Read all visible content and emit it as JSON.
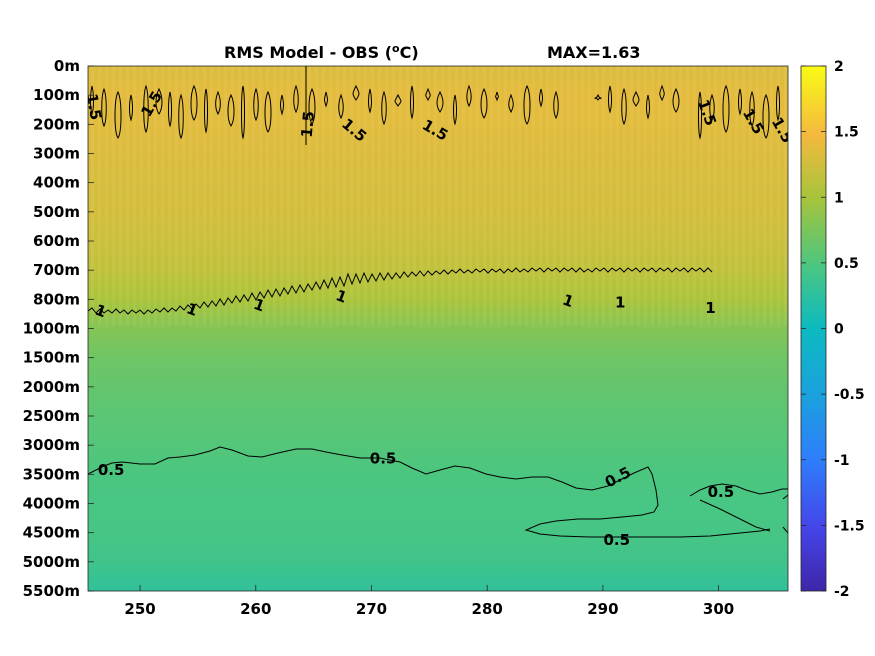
{
  "chart_data": {
    "type": "heatmap",
    "title": "RMS Model - OBS (",
    "title_unit_sup": "o",
    "title_unit_end": "C)",
    "max_label": "MAX=1.63",
    "x_ticks": [
      250,
      260,
      270,
      280,
      290,
      300
    ],
    "xlim": [
      245.5,
      306
    ],
    "y_tick_labels": [
      "0m",
      "100m",
      "200m",
      "300m",
      "400m",
      "500m",
      "600m",
      "700m",
      "800m",
      "1000m",
      "1500m",
      "2000m",
      "2500m",
      "3000m",
      "3500m",
      "4000m",
      "4500m",
      "5000m",
      "5500m"
    ],
    "depth_profile": [
      {
        "depth_index": 0,
        "value": 1.32
      },
      {
        "depth_index": 1,
        "value": 1.38
      },
      {
        "depth_index": 2,
        "value": 1.36
      },
      {
        "depth_index": 3,
        "value": 1.33
      },
      {
        "depth_index": 4,
        "value": 1.3
      },
      {
        "depth_index": 5,
        "value": 1.27
      },
      {
        "depth_index": 6,
        "value": 1.22
      },
      {
        "depth_index": 7,
        "value": 1.15
      },
      {
        "depth_index": 8,
        "value": 1.02
      },
      {
        "depth_index": 9,
        "value": 0.8
      },
      {
        "depth_index": 10,
        "value": 0.68
      },
      {
        "depth_index": 11,
        "value": 0.62
      },
      {
        "depth_index": 12,
        "value": 0.57
      },
      {
        "depth_index": 13,
        "value": 0.53
      },
      {
        "depth_index": 14,
        "value": 0.48
      },
      {
        "depth_index": 15,
        "value": 0.46
      },
      {
        "depth_index": 16,
        "value": 0.45
      },
      {
        "depth_index": 17,
        "value": 0.4
      },
      {
        "depth_index": 18,
        "value": 0.28
      }
    ],
    "contour_labels": [
      {
        "text": "0.5",
        "x": 247.5,
        "depth_index": 13.85
      },
      {
        "text": "0.5",
        "x": 271.0,
        "depth_index": 13.45
      },
      {
        "text": "0.5",
        "x": 291.3,
        "depth_index": 14.1,
        "rotate": -28
      },
      {
        "text": "0.5",
        "x": 300.2,
        "depth_index": 14.6
      },
      {
        "text": "0.5",
        "x": 291.2,
        "depth_index": 16.25
      },
      {
        "text": "1",
        "x": 246.6,
        "depth_index": 8.4,
        "rotate": 20
      },
      {
        "text": "1",
        "x": 254.5,
        "depth_index": 8.35,
        "rotate": 20
      },
      {
        "text": "1",
        "x": 260.3,
        "depth_index": 8.2,
        "rotate": 20
      },
      {
        "text": "1",
        "x": 267.4,
        "depth_index": 7.9,
        "rotate": 20
      },
      {
        "text": "1",
        "x": 287.0,
        "depth_index": 8.05,
        "rotate": 20
      },
      {
        "text": "1",
        "x": 291.5,
        "depth_index": 8.1
      },
      {
        "text": "1",
        "x": 299.3,
        "depth_index": 8.3
      },
      {
        "text": "1.5",
        "x": 246.0,
        "depth_index": 1.4,
        "rotate": 80
      },
      {
        "text": "1.5",
        "x": 251.0,
        "depth_index": 1.3,
        "rotate": -60
      },
      {
        "text": "1.5",
        "x": 264.5,
        "depth_index": 2.0,
        "rotate": -85
      },
      {
        "text": "1.5",
        "x": 268.5,
        "depth_index": 2.2,
        "rotate": 40
      },
      {
        "text": "1.5",
        "x": 275.5,
        "depth_index": 2.2,
        "rotate": 30
      },
      {
        "text": "1.5",
        "x": 299.0,
        "depth_index": 1.6,
        "rotate": 70
      },
      {
        "text": "1.5",
        "x": 303.0,
        "depth_index": 1.9,
        "rotate": 60
      },
      {
        "text": "1.5",
        "x": 305.5,
        "depth_index": 2.2,
        "rotate": 60
      }
    ],
    "colorbar": {
      "min": -2,
      "max": 2,
      "ticks": [
        2,
        1.5,
        1,
        0.5,
        0,
        -0.5,
        -1,
        -1.5,
        -2
      ],
      "tick_labels": [
        "2",
        "1.5",
        "1",
        "0.5",
        "0",
        "-0.5",
        "-1",
        "-1.5",
        "-2"
      ],
      "colormap": "parula"
    },
    "grid": false
  }
}
